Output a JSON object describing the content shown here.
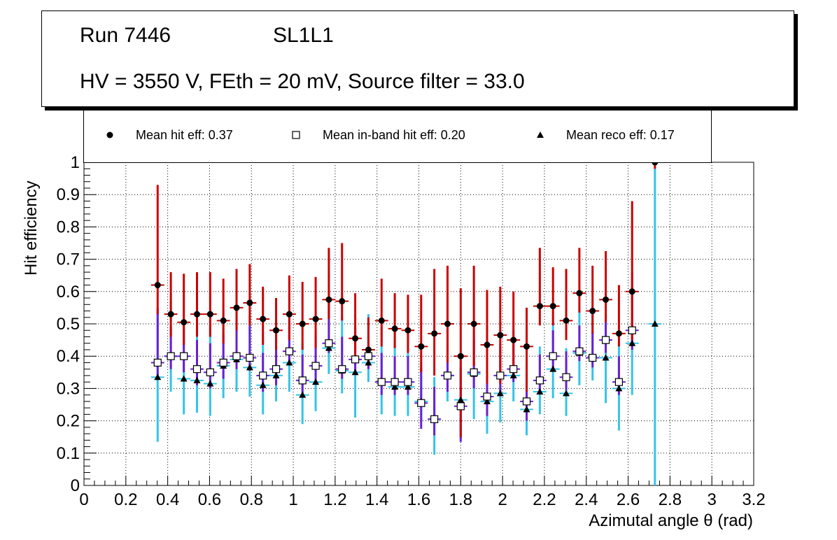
{
  "title": {
    "run": "Run 7446",
    "layer": "SL1L1",
    "settings": "HV = 3550 V, FEth = 20 mV, Source filter = 33.0"
  },
  "legend": {
    "hit": "Mean hit  eff: 0.37",
    "inband": "Mean in-band hit eff: 0.20",
    "reco": "Mean reco eff: 0.17"
  },
  "chart_data": {
    "type": "scatter",
    "xlabel": "Azimutal angle θ (rad)",
    "ylabel": "Hit efficiency",
    "xlim": [
      0,
      3.2
    ],
    "ylim": [
      0,
      1
    ],
    "grid": true,
    "xticks": [
      "0",
      "0.2",
      "0.4",
      "0.6",
      "0.8",
      "1",
      "1.2",
      "1.4",
      "1.6",
      "1.8",
      "2",
      "2.2",
      "2.4",
      "2.6",
      "2.8",
      "3",
      "3.2"
    ],
    "yticks": [
      "0",
      "0.1",
      "0.2",
      "0.3",
      "0.4",
      "0.5",
      "0.6",
      "0.7",
      "0.8",
      "0.9",
      "1"
    ],
    "x": [
      0.352,
      0.415,
      0.477,
      0.54,
      0.603,
      0.666,
      0.729,
      0.792,
      0.855,
      0.918,
      0.981,
      1.044,
      1.107,
      1.17,
      1.233,
      1.296,
      1.359,
      1.422,
      1.485,
      1.548,
      1.611,
      1.674,
      1.737,
      1.8,
      1.863,
      1.926,
      1.989,
      2.052,
      2.115,
      2.178,
      2.241,
      2.304,
      2.367,
      2.43,
      2.493,
      2.556,
      2.619,
      2.682,
      2.728
    ],
    "series": [
      {
        "name": "Mean hit efficiency",
        "marker": "circle",
        "color": "#000000",
        "error_color": "#cc0000",
        "values": [
          0.62,
          0.53,
          0.505,
          0.53,
          0.53,
          0.51,
          0.55,
          0.565,
          0.515,
          0.48,
          0.53,
          0.5,
          0.515,
          0.575,
          0.57,
          0.455,
          0.42,
          0.51,
          0.485,
          0.48,
          0.43,
          0.47,
          0.5,
          0.4,
          0.5,
          0.435,
          0.465,
          0.45,
          0.43,
          0.555,
          0.555,
          0.51,
          0.595,
          0.54,
          0.575,
          0.47,
          0.6,
          null,
          1.0
        ],
        "err_low": [
          0.09,
          0.07,
          0.07,
          0.07,
          0.07,
          0.07,
          0.07,
          0.07,
          0.08,
          0.06,
          0.08,
          0.08,
          0.09,
          0.06,
          0.06,
          0.06,
          0.04,
          0.08,
          0.06,
          0.07,
          0.08,
          0.13,
          0.12,
          0.25,
          0.13,
          0.12,
          0.15,
          0.1,
          0.14,
          0.06,
          0.06,
          0.06,
          0.06,
          0.07,
          0.07,
          0.04,
          0.15,
          null,
          0.02
        ],
        "err_high": [
          0.31,
          0.13,
          0.15,
          0.13,
          0.13,
          0.13,
          0.12,
          0.12,
          0.1,
          0.1,
          0.12,
          0.13,
          0.13,
          0.16,
          0.18,
          0.14,
          0.1,
          0.13,
          0.11,
          0.11,
          0.16,
          0.2,
          0.18,
          0.21,
          0.18,
          0.17,
          0.15,
          0.15,
          0.12,
          0.18,
          0.12,
          0.16,
          0.14,
          0.14,
          0.15,
          0.15,
          0.28,
          null,
          0.0
        ]
      },
      {
        "name": "Mean in-band hit efficiency",
        "marker": "open-square",
        "color": "#000000",
        "error_color": "#6a1fd4",
        "values": [
          0.38,
          0.4,
          0.4,
          0.36,
          0.35,
          0.38,
          0.4,
          0.395,
          0.34,
          0.36,
          0.415,
          0.325,
          0.37,
          0.44,
          0.36,
          0.39,
          0.4,
          0.32,
          0.32,
          0.32,
          0.255,
          0.205,
          0.34,
          0.245,
          0.35,
          0.275,
          0.34,
          0.36,
          0.26,
          0.325,
          0.4,
          0.335,
          0.415,
          0.395,
          0.45,
          0.32,
          0.48,
          null,
          null
        ],
        "err_low": [
          0.05,
          0.04,
          0.05,
          0.05,
          0.05,
          0.05,
          0.04,
          0.04,
          0.05,
          0.05,
          0.04,
          0.04,
          0.05,
          0.03,
          0.03,
          0.04,
          0.04,
          0.04,
          0.04,
          0.04,
          0.08,
          0.05,
          0.05,
          0.11,
          0.05,
          0.06,
          0.05,
          0.04,
          0.06,
          0.04,
          0.04,
          0.04,
          0.03,
          0.03,
          0.04,
          0.04,
          0.06,
          null,
          null
        ],
        "err_high": [
          0.17,
          0.09,
          0.09,
          0.09,
          0.09,
          0.09,
          0.1,
          0.1,
          0.07,
          0.07,
          0.09,
          0.08,
          0.09,
          0.14,
          0.1,
          0.1,
          0.06,
          0.09,
          0.08,
          0.08,
          0.11,
          0.1,
          0.1,
          0.12,
          0.1,
          0.09,
          0.1,
          0.09,
          0.09,
          0.08,
          0.08,
          0.08,
          0.08,
          0.08,
          0.08,
          0.08,
          0.18,
          null,
          null
        ]
      },
      {
        "name": "Mean reco efficiency",
        "marker": "triangle",
        "color": "#000000",
        "error_color": "#33c4e8",
        "values": [
          0.335,
          0.4,
          0.33,
          0.325,
          0.315,
          0.37,
          0.39,
          0.365,
          0.31,
          0.34,
          0.38,
          0.28,
          0.32,
          0.425,
          0.355,
          0.35,
          0.38,
          0.32,
          0.305,
          0.305,
          0.26,
          0.205,
          0.34,
          0.265,
          0.345,
          0.26,
          0.285,
          0.34,
          0.235,
          0.29,
          0.36,
          0.285,
          0.41,
          0.395,
          0.395,
          0.3,
          0.44,
          null,
          0.5
        ],
        "err_low": [
          0.2,
          0.11,
          0.11,
          0.1,
          0.1,
          0.1,
          0.1,
          0.09,
          0.09,
          0.08,
          0.09,
          0.09,
          0.09,
          0.08,
          0.07,
          0.14,
          0.06,
          0.1,
          0.09,
          0.09,
          0.06,
          0.11,
          0.08,
          0.12,
          0.14,
          0.1,
          0.09,
          0.08,
          0.08,
          0.07,
          0.09,
          0.07,
          0.1,
          0.07,
          0.14,
          0.13,
          0.16,
          null,
          0.5
        ],
        "err_high": [
          0.2,
          0.17,
          0.17,
          0.17,
          0.17,
          0.17,
          0.16,
          0.16,
          0.16,
          0.15,
          0.16,
          0.16,
          0.16,
          0.16,
          0.17,
          0.17,
          0.15,
          0.17,
          0.17,
          0.17,
          0.12,
          0.13,
          0.14,
          0.14,
          0.14,
          0.13,
          0.14,
          0.14,
          0.13,
          0.14,
          0.14,
          0.14,
          0.13,
          0.14,
          0.13,
          0.14,
          0.14,
          null,
          0.5
        ]
      }
    ]
  }
}
